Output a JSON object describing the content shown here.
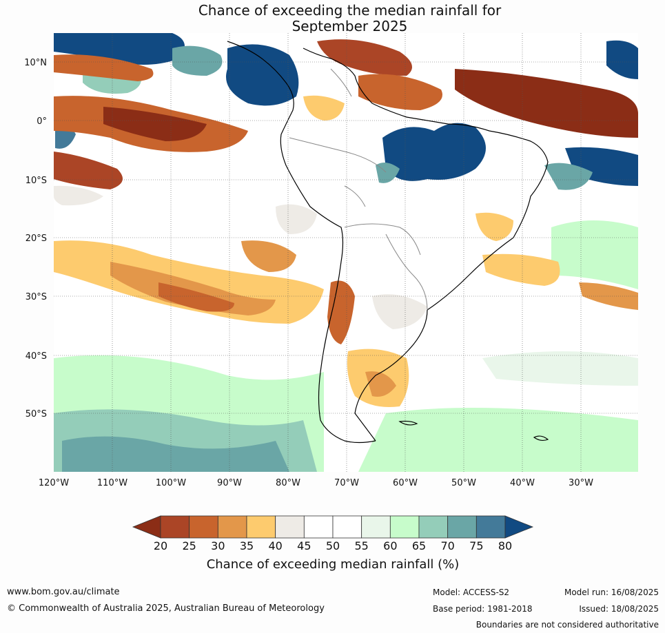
{
  "title": {
    "line1": "Chance of exceeding the median rainfall for",
    "line2": "September 2025"
  },
  "lat_labels": [
    "10°N",
    "0°",
    "10°S",
    "20°S",
    "30°S",
    "40°S",
    "50°S"
  ],
  "lon_labels": [
    "120°W",
    "110°W",
    "100°W",
    "90°W",
    "80°W",
    "70°W",
    "60°W",
    "50°W",
    "40°W",
    "30°W"
  ],
  "colorbar": {
    "ticks": [
      "20",
      "25",
      "30",
      "35",
      "40",
      "45",
      "50",
      "55",
      "60",
      "65",
      "70",
      "75",
      "80"
    ],
    "colors": [
      "#8b2d16",
      "#ab4526",
      "#c8642d",
      "#e3974a",
      "#fdcb6e",
      "#eeebe6",
      "#ffffff",
      "#ffffff",
      "#e9f6ea",
      "#c7fccb",
      "#94cdb9",
      "#6aa6a6",
      "#437a99",
      "#114a82"
    ],
    "label": "Chance of exceeding median rainfall (%)"
  },
  "footer": {
    "website": "www.bom.gov.au/climate",
    "copyright": "© Commonwealth of Australia 2025, Australian Bureau of Meteorology",
    "model": "Model: ACCESS-S2",
    "base_period": "Base period: 1981-2018",
    "model_run": "Model run: 16/08/2025",
    "issued": "Issued: 18/08/2025",
    "disclaimer": "Boundaries are not considered authoritative"
  }
}
